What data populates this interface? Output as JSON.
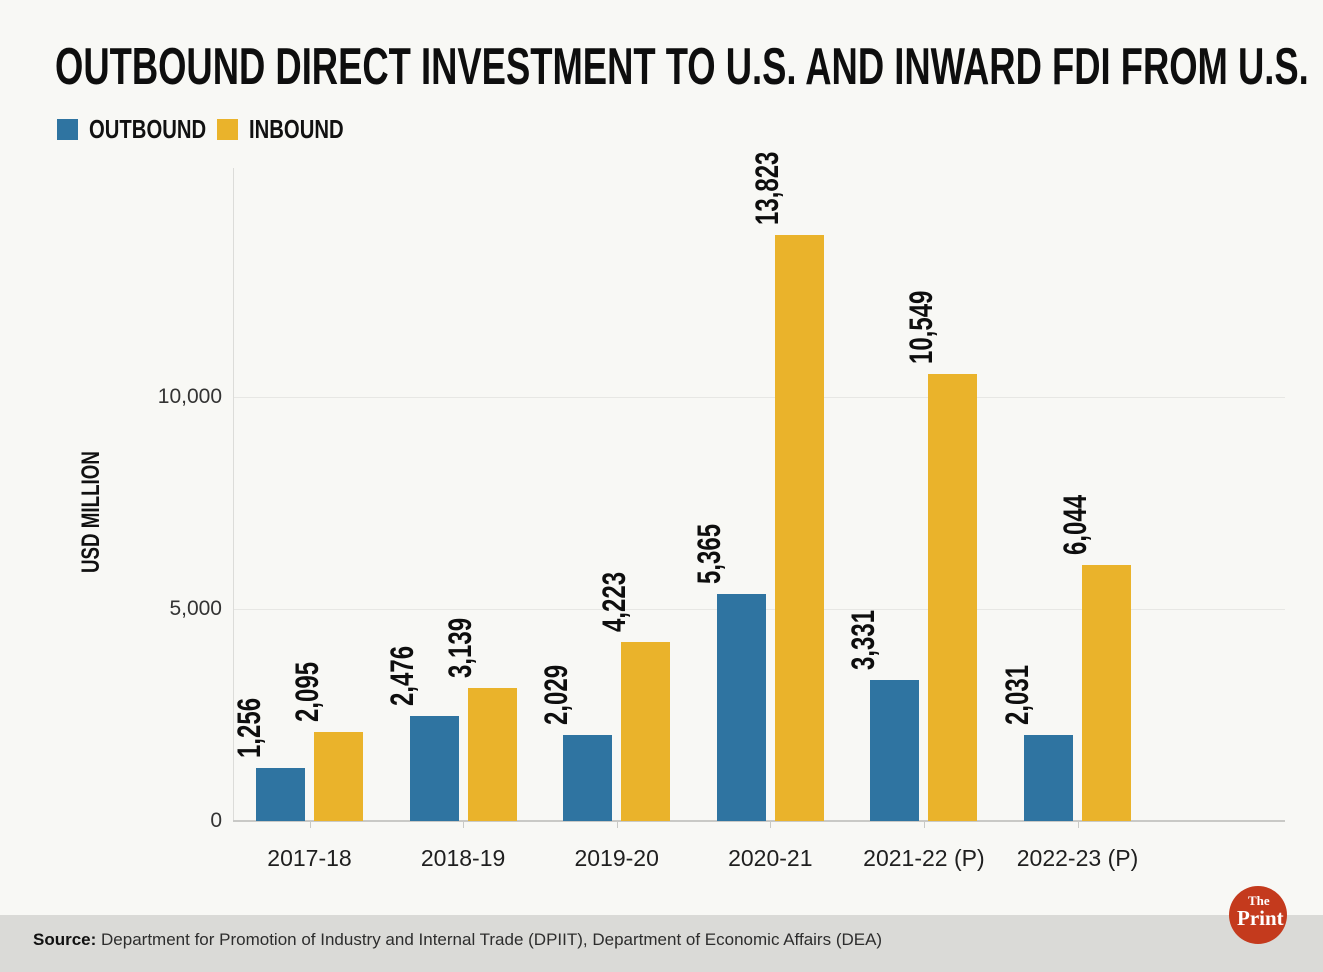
{
  "title": "OUTBOUND DIRECT INVESTMENT TO U.S. AND INWARD FDI FROM U.S.",
  "legend": {
    "items": [
      {
        "label": "OUTBOUND",
        "color": "#2f74a1"
      },
      {
        "label": "INBOUND",
        "color": "#eab32b"
      }
    ]
  },
  "chart_data": {
    "type": "bar",
    "title": "OUTBOUND DIRECT INVESTMENT TO U.S. AND INWARD FDI FROM U.S.",
    "categories": [
      "2017-18",
      "2018-19",
      "2019-20",
      "2020-21",
      "2021-22 (P)",
      "2022-23 (P)"
    ],
    "series": [
      {
        "name": "OUTBOUND",
        "color": "#2f74a1",
        "values": [
          1256,
          2476,
          2029,
          5365,
          3331,
          2031
        ]
      },
      {
        "name": "INBOUND",
        "color": "#eab32b",
        "values": [
          2095,
          3139,
          4223,
          13823,
          10549,
          6044
        ]
      }
    ],
    "ylabel": "USD MILLION",
    "yticks": [
      0,
      5000,
      10000
    ],
    "ylim": [
      0,
      14500
    ],
    "grid": true,
    "legend_position": "top-left",
    "value_labels": "rotated-90-above-bars"
  },
  "footer": {
    "source_label": "Source:",
    "source_text": "Department for Promotion of Industry and Internal Trade (DPIIT), Department of Economic Affairs (DEA)",
    "logo": {
      "line1": "The",
      "line2": "Print",
      "color": "#c43a1d"
    }
  }
}
